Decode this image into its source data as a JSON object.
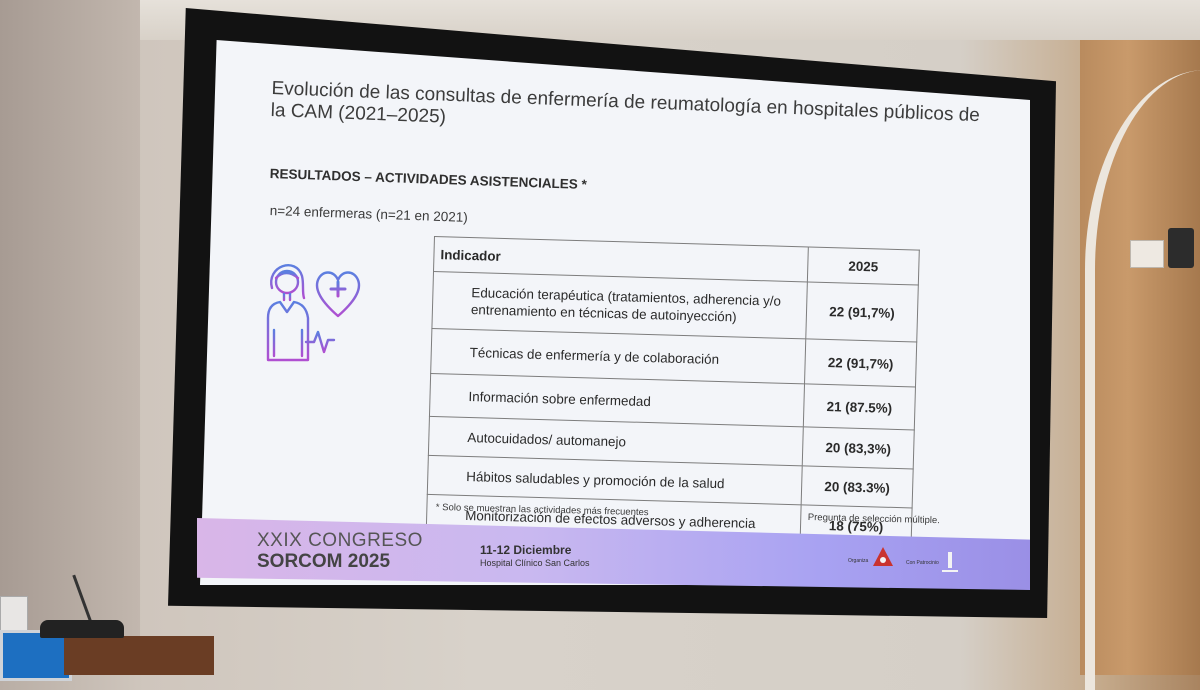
{
  "slide": {
    "title": "Evolución de las consultas de enfermería de reumatología en hospitales públicos de la CAM (2021–2025)",
    "subtitle": "RESULTADOS – ACTIVIDADES ASISTENCIALES *",
    "sample": "n=24 enfermeras (n=21 en 2021)",
    "table": {
      "header_indicator": "Indicador",
      "header_year": "2025",
      "rows": [
        {
          "indicator": "Educación terapéutica (tratamientos, adherencia y/o entrenamiento en técnicas de autoinyección)",
          "value": "22 (91,7%)"
        },
        {
          "indicator": "Técnicas de enfermería y de colaboración",
          "value": "22 (91,7%)"
        },
        {
          "indicator": "Información sobre enfermedad",
          "value": "21 (87.5%)"
        },
        {
          "indicator": "Autocuidados/ automanejo",
          "value": "20 (83,3%)"
        },
        {
          "indicator": "Hábitos saludables y promoción de la salud",
          "value": "20 (83.3%)"
        },
        {
          "indicator": "Monitorización de efectos adversos y adherencia",
          "value": "18 (75%)"
        }
      ]
    },
    "footnote": "* Solo se muestran las actividades más frecuentes",
    "multiple_choice_note": "Pregunta de selección múltiple."
  },
  "banner": {
    "congress_line": "XXIX CONGRESO",
    "brand_line": "SORCOM 2025",
    "dates": "11-12 Diciembre",
    "venue": "Hospital Clínico San Carlos",
    "organizer_label": "Organiza",
    "sponsor_label": "Con Patrocinio"
  },
  "icons": {
    "nurse_illustration": "nurse-heart-icon",
    "accent_gradient": [
      "#5b7fe0",
      "#b04fd1"
    ]
  },
  "colors": {
    "banner_start": "#d9b6e8",
    "banner_end": "#9a8fe6",
    "screen_bg": "#f3f5f9"
  }
}
